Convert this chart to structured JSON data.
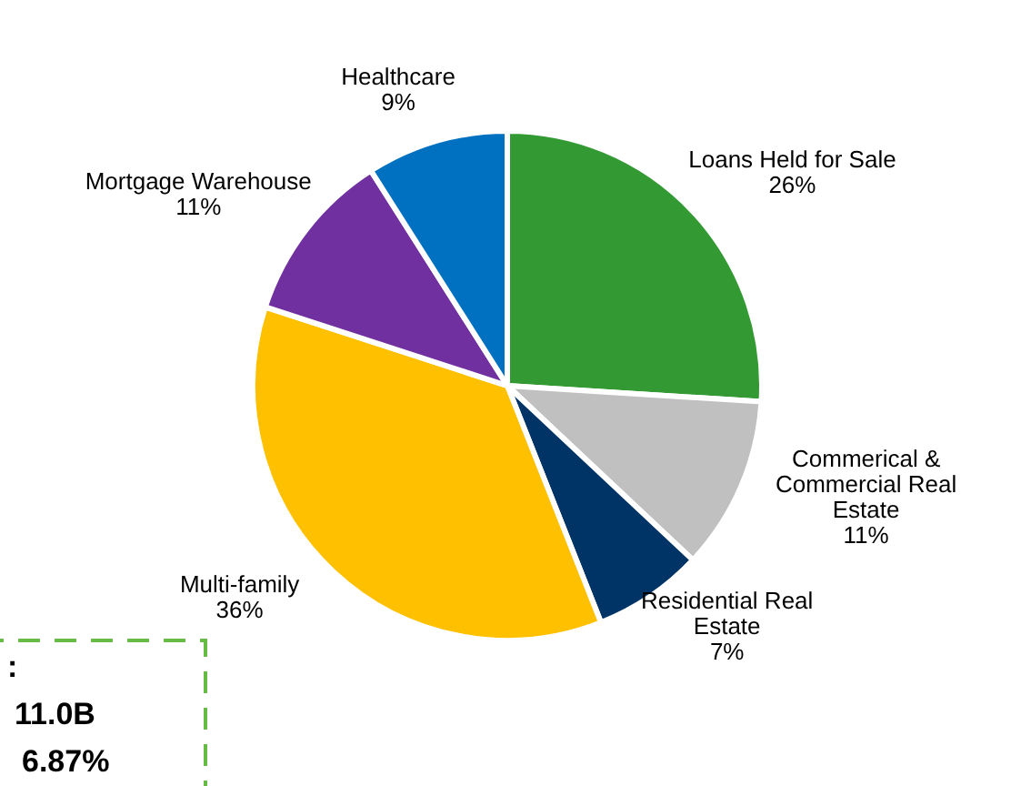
{
  "chart_data": {
    "type": "pie",
    "categories": [
      "Loans Held for Sale",
      "Commerical & Commercial Real Estate",
      "Residential Real Estate",
      "Multi-family",
      "Mortgage Warehouse",
      "Healthcare"
    ],
    "values": [
      26,
      11,
      7,
      36,
      11,
      9
    ],
    "value_labels": [
      "26%",
      "11%",
      "7%",
      "36%",
      "11%",
      "9%"
    ],
    "colors": [
      "#339933",
      "#c0c0c0",
      "#003366",
      "#ffc000",
      "#7030a0",
      "#0070c0"
    ],
    "annotations": [
      ":",
      "11.0B",
      "6.87%"
    ]
  }
}
